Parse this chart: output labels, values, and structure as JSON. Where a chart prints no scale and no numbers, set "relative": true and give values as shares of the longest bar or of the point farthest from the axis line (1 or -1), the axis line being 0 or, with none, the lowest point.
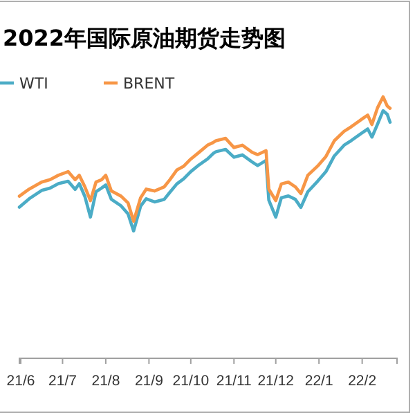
{
  "chart_data": {
    "type": "line",
    "title": "2022年国际原油期货走势图",
    "relative": true,
    "legend": "top left",
    "x": [
      "2021-05-31",
      "2021-06-07",
      "2021-06-16",
      "2021-06-22",
      "2021-06-28",
      "2021-07-05",
      "2021-07-10",
      "2021-07-13",
      "2021-07-17",
      "2021-07-21",
      "2021-07-25",
      "2021-07-29",
      "2021-08-01",
      "2021-08-05",
      "2021-08-12",
      "2021-08-17",
      "2021-08-21",
      "2021-08-26",
      "2021-08-30",
      "2021-09-05",
      "2021-09-12",
      "2021-09-16",
      "2021-09-21",
      "2021-09-26",
      "2021-10-01",
      "2021-10-07",
      "2021-10-13",
      "2021-10-17",
      "2021-10-19",
      "2021-10-26",
      "2021-11-01",
      "2021-11-07",
      "2021-11-14",
      "2021-11-18",
      "2021-11-24",
      "2021-11-26",
      "2021-12-01",
      "2021-12-05",
      "2021-12-10",
      "2021-12-15",
      "2021-12-19",
      "2021-12-24",
      "2021-12-31",
      "2022-01-06",
      "2022-01-12",
      "2022-01-19",
      "2022-01-24",
      "2022-01-31",
      "2022-02-05",
      "2022-02-08",
      "2022-02-12",
      "2022-02-16",
      "2022-02-19",
      "2022-02-21"
    ],
    "xlim": [
      "2021-05-31",
      "2022-02-26"
    ],
    "xticks": [
      {
        "value": "2021-06-01",
        "label": "21/6"
      },
      {
        "value": "2021-07-01",
        "label": "21/7"
      },
      {
        "value": "2021-08-01",
        "label": "21/8"
      },
      {
        "value": "2021-09-01",
        "label": "21/9"
      },
      {
        "value": "2021-10-01",
        "label": "21/10"
      },
      {
        "value": "2021-11-01",
        "label": "21/11"
      },
      {
        "value": "2021-12-01",
        "label": "21/12"
      },
      {
        "value": "2022-01-01",
        "label": "22/1"
      },
      {
        "value": "2022-02-01",
        "label": "22/2"
      }
    ],
    "series": [
      {
        "name": "WTI",
        "color": "#4bacc6",
        "values": [
          0.578,
          0.61,
          0.642,
          0.651,
          0.668,
          0.677,
          0.646,
          0.668,
          0.619,
          0.54,
          0.637,
          0.651,
          0.663,
          0.608,
          0.583,
          0.552,
          0.487,
          0.582,
          0.61,
          0.598,
          0.608,
          0.635,
          0.667,
          0.687,
          0.714,
          0.74,
          0.762,
          0.783,
          0.79,
          0.799,
          0.769,
          0.778,
          0.751,
          0.737,
          0.757,
          0.605,
          0.54,
          0.614,
          0.621,
          0.608,
          0.577,
          0.637,
          0.677,
          0.714,
          0.774,
          0.815,
          0.832,
          0.859,
          0.877,
          0.846,
          0.895,
          0.947,
          0.933,
          0.903
        ]
      },
      {
        "name": "BRENT",
        "color": "#f79646",
        "values": [
          0.62,
          0.647,
          0.674,
          0.683,
          0.7,
          0.714,
          0.683,
          0.7,
          0.656,
          0.603,
          0.674,
          0.683,
          0.7,
          0.64,
          0.62,
          0.594,
          0.524,
          0.614,
          0.647,
          0.64,
          0.656,
          0.683,
          0.72,
          0.735,
          0.762,
          0.788,
          0.815,
          0.825,
          0.832,
          0.841,
          0.806,
          0.815,
          0.788,
          0.779,
          0.794,
          0.647,
          0.603,
          0.667,
          0.674,
          0.656,
          0.63,
          0.7,
          0.735,
          0.772,
          0.832,
          0.868,
          0.885,
          0.912,
          0.93,
          0.894,
          0.958,
          1.0,
          0.965,
          0.956
        ]
      }
    ]
  }
}
